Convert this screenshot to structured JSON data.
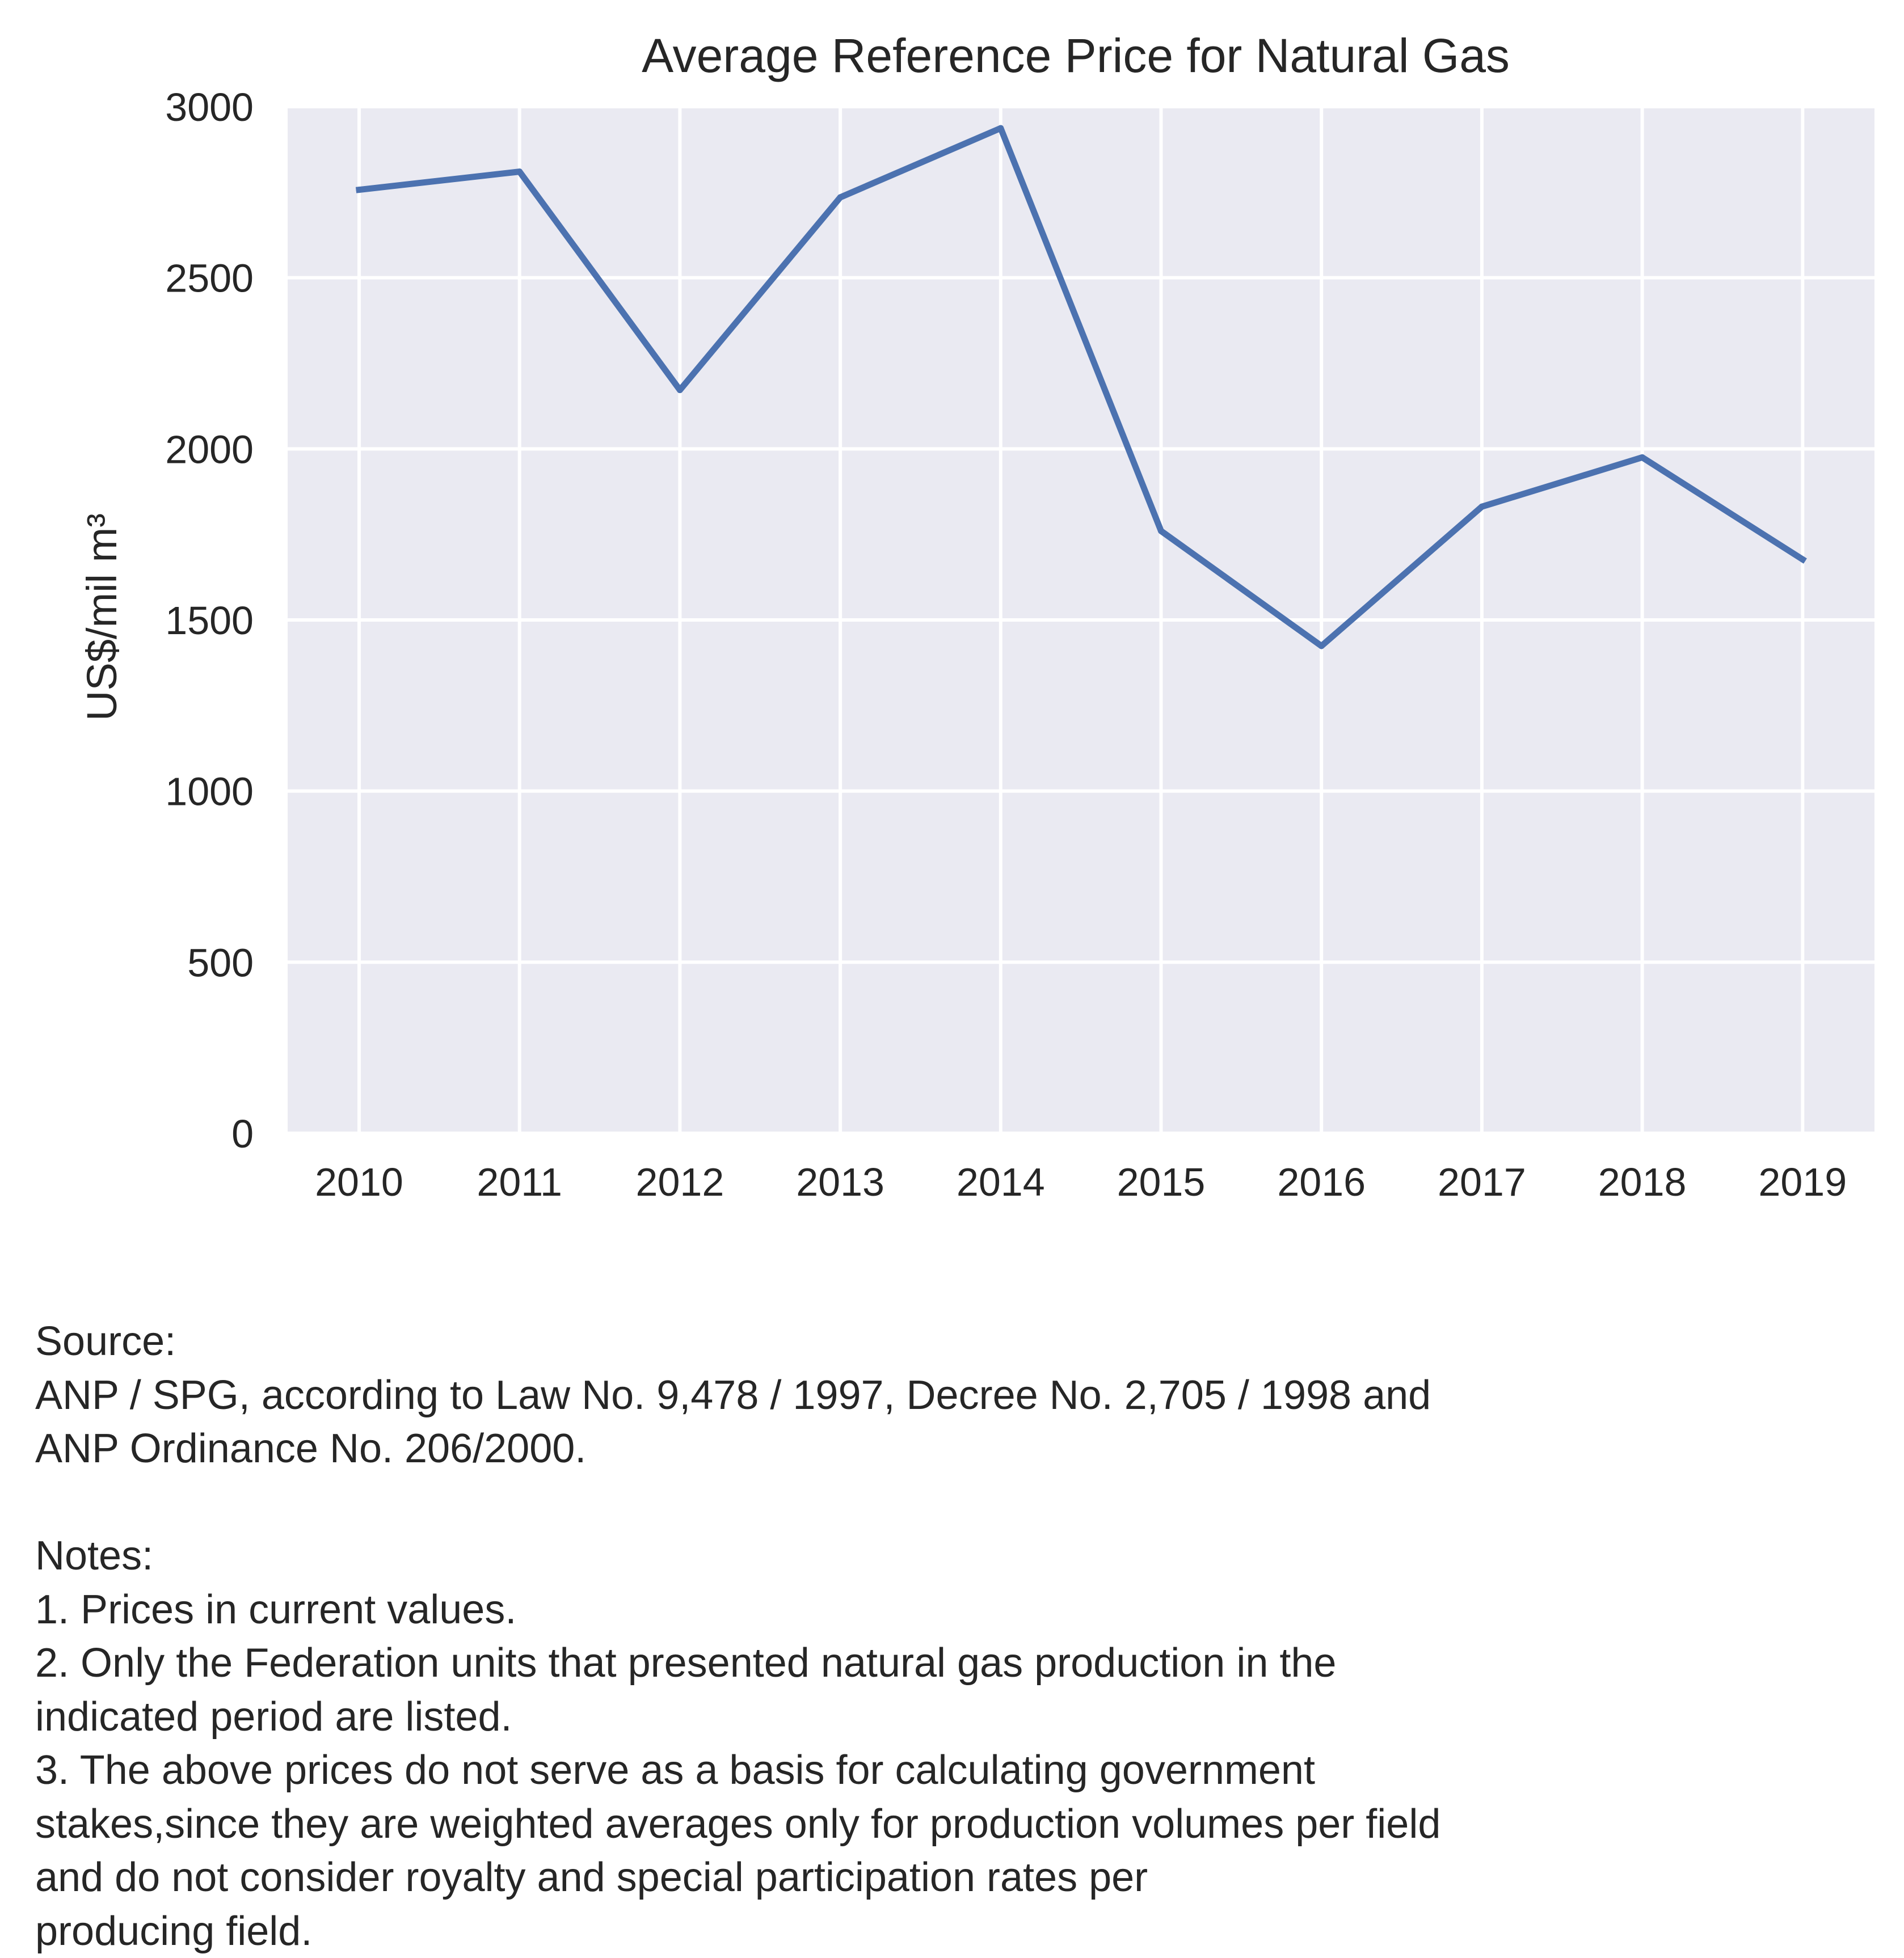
{
  "chart_data": {
    "type": "line",
    "title": "Average Reference Price for Natural Gas",
    "xlabel": "",
    "ylabel": "US$/mil m³",
    "x": [
      "2010",
      "2011",
      "2012",
      "2013",
      "2014",
      "2015",
      "2016",
      "2017",
      "2018",
      "2019"
    ],
    "series": [
      {
        "values": [
          2757,
          2810,
          2172,
          2735,
          2937,
          1760,
          1424,
          1831,
          1975,
          1677
        ]
      }
    ],
    "yticks": [
      "0",
      "500",
      "1000",
      "1500",
      "2000",
      "2500",
      "3000"
    ],
    "ylim": [
      0,
      3000
    ],
    "grid": true,
    "legend": "none",
    "colors": {
      "line": "#4c72b0",
      "plot_background": "#eaeaf2",
      "grid": "#ffffff"
    }
  },
  "footnote": {
    "lines": [
      "Source:",
      "ANP / SPG, according to Law No. 9,478 / 1997, Decree No. 2,705 / 1998 and",
      "ANP Ordinance No. 206/2000.",
      "",
      "Notes:",
      "1. Prices in current values.",
      "2. Only the Federation units that presented natural gas production in the",
      "indicated period are listed.",
      "3. The above prices do not serve as a basis for calculating government",
      "stakes,since they are weighted averages only for production volumes per field",
      "and do not consider royalty and special participation rates per",
      "producing field."
    ]
  }
}
